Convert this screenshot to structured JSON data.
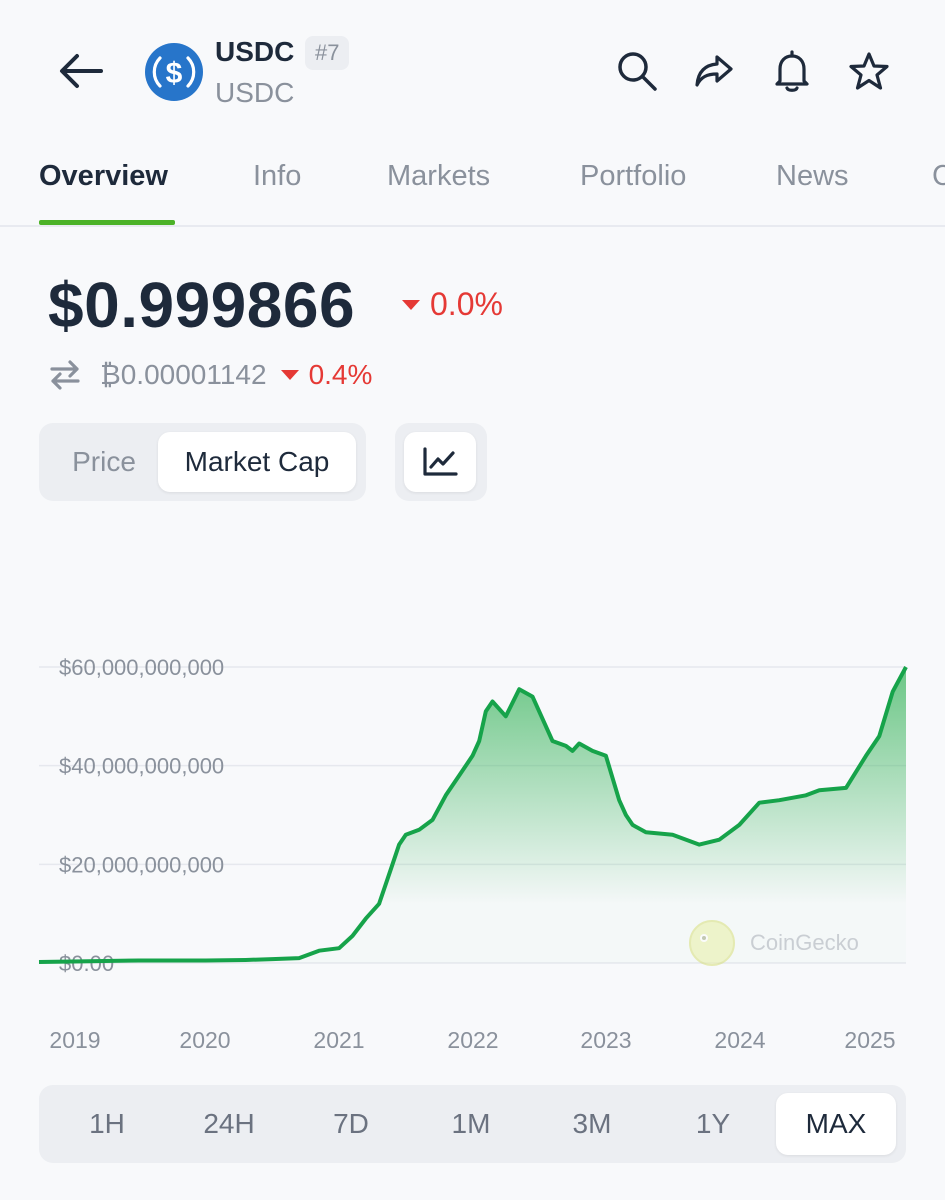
{
  "header": {
    "coin_name": "USDC",
    "rank": "#7",
    "coin_symbol": "USDC",
    "logo_color": "#2775ca",
    "icons": [
      "arrow-left-icon",
      "search-icon",
      "share-icon",
      "bell-icon",
      "star-icon"
    ]
  },
  "tabs": [
    {
      "label": "Overview",
      "active": true
    },
    {
      "label": "Info"
    },
    {
      "label": "Markets"
    },
    {
      "label": "Portfolio"
    },
    {
      "label": "News"
    },
    {
      "label": "C"
    }
  ],
  "price": {
    "usd": "$0.999866",
    "usd_change": "0.0%",
    "btc": "₿0.00001142",
    "btc_change": "0.4%",
    "change_color": "#e53935"
  },
  "toggle": {
    "price_label": "Price",
    "market_cap_label": "Market Cap",
    "selected": "Market Cap",
    "chart_icon": "line-chart-icon"
  },
  "watermark": "CoinGecko",
  "ranges": [
    "1H",
    "24H",
    "7D",
    "1M",
    "3M",
    "1Y",
    "MAX"
  ],
  "selected_range": "MAX",
  "chart_data": {
    "type": "area",
    "ylabel": "",
    "ylim": [
      0,
      60000000000
    ],
    "y_ticks": [
      "$0.00",
      "$20,000,000,000",
      "$40,000,000,000",
      "$60,000,000,000"
    ],
    "y_tick_values": [
      0,
      20000000000,
      40000000000,
      60000000000
    ],
    "x_ticks": [
      "2019",
      "2020",
      "2021",
      "2022",
      "2023",
      "2024",
      "2025"
    ],
    "line_color": "#16a34a",
    "series": [
      {
        "x": [
          2018.75,
          2019.0,
          2019.5,
          2020.0,
          2020.3,
          2020.5,
          2020.7,
          2020.85,
          2021.0,
          2021.1,
          2021.2,
          2021.3,
          2021.4,
          2021.45,
          2021.5,
          2021.6,
          2021.7,
          2021.8,
          2021.9,
          2022.0,
          2022.05,
          2022.1,
          2022.15,
          2022.25,
          2022.35,
          2022.45,
          2022.5,
          2022.6,
          2022.7,
          2022.75,
          2022.8,
          2022.9,
          2023.0,
          2023.1,
          2023.15,
          2023.2,
          2023.3,
          2023.5,
          2023.7,
          2023.85,
          2024.0,
          2024.15,
          2024.3,
          2024.5,
          2024.6,
          2024.8,
          2024.95,
          2025.05,
          2025.15,
          2025.25
        ],
        "y": [
          0.2,
          0.3,
          0.5,
          0.5,
          0.6,
          0.8,
          1.0,
          2.5,
          3.0,
          5.5,
          9.0,
          12.0,
          20.0,
          24.0,
          26.0,
          27.0,
          29.0,
          34.0,
          38.0,
          42.0,
          45.0,
          51.0,
          53.0,
          50.0,
          55.5,
          54.0,
          51.0,
          45.0,
          44.0,
          43.0,
          44.5,
          43.0,
          42.0,
          33.0,
          30.0,
          28.0,
          26.5,
          26.0,
          24.0,
          25.0,
          28.0,
          32.5,
          33.0,
          34.0,
          35.0,
          35.5,
          42.0,
          46.0,
          55.0,
          60.0
        ]
      }
    ]
  }
}
